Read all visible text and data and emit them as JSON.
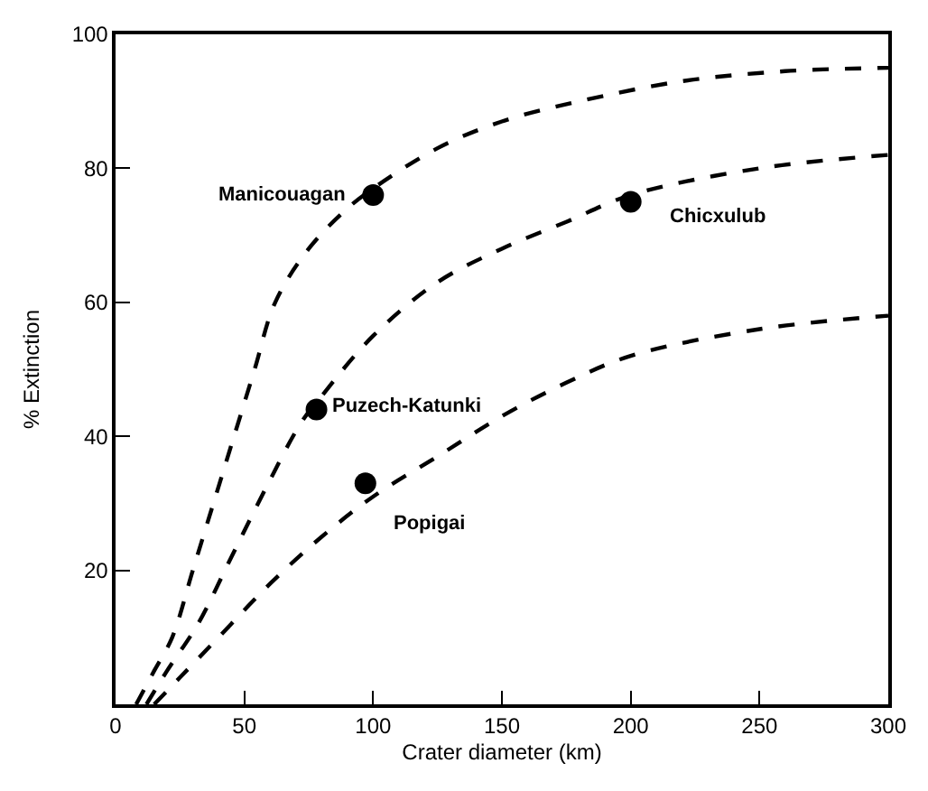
{
  "chart_data": {
    "type": "line",
    "xlabel": "Crater diameter (km)",
    "ylabel": "% Extinction",
    "xlim": [
      0,
      300
    ],
    "xticks": [
      0,
      50,
      100,
      150,
      200,
      250,
      300
    ],
    "ylim": [
      0,
      100
    ],
    "yticks": [
      20,
      40,
      60,
      80,
      100
    ],
    "legend": false,
    "series": [
      {
        "color": "#000000",
        "line_style": "dashed",
        "marker": "none",
        "x": [
          8,
          15,
          22,
          30,
          38,
          46,
          54,
          62,
          75,
          90,
          100,
          125,
          150,
          180,
          220,
          260,
          300
        ],
        "values": [
          0,
          5,
          10,
          20,
          30,
          40,
          50,
          60,
          68,
          74,
          77,
          83,
          87,
          90,
          93,
          94.5,
          95
        ]
      },
      {
        "color": "#000000",
        "line_style": "dashed",
        "marker": "none",
        "x": [
          12,
          20,
          32,
          45,
          58,
          72,
          80,
          100,
          125,
          150,
          175,
          200,
          250,
          300
        ],
        "values": [
          0,
          5,
          12,
          22,
          32,
          42,
          46,
          55,
          63,
          68,
          72,
          76,
          80,
          82
        ]
      },
      {
        "color": "#000000",
        "line_style": "dashed",
        "marker": "none",
        "x": [
          15,
          25,
          40,
          60,
          80,
          100,
          125,
          150,
          175,
          200,
          250,
          300
        ],
        "values": [
          0,
          4,
          10,
          18,
          25,
          31,
          37,
          43,
          48,
          52,
          56,
          58
        ]
      },
      {
        "type": "scatter",
        "color": "#000000",
        "marker": "circle",
        "x": [
          100,
          200,
          78,
          97
        ],
        "values": [
          76,
          75,
          44,
          33
        ]
      }
    ],
    "annotations": [
      {
        "text": "Manicouagan",
        "x": 100,
        "y": 76
      },
      {
        "text": "Chicxulub",
        "x": 200,
        "y": 75
      },
      {
        "text": "Puzech-Katunki",
        "x": 78,
        "y": 44
      },
      {
        "text": "Popigai",
        "x": 97,
        "y": 33
      }
    ]
  }
}
